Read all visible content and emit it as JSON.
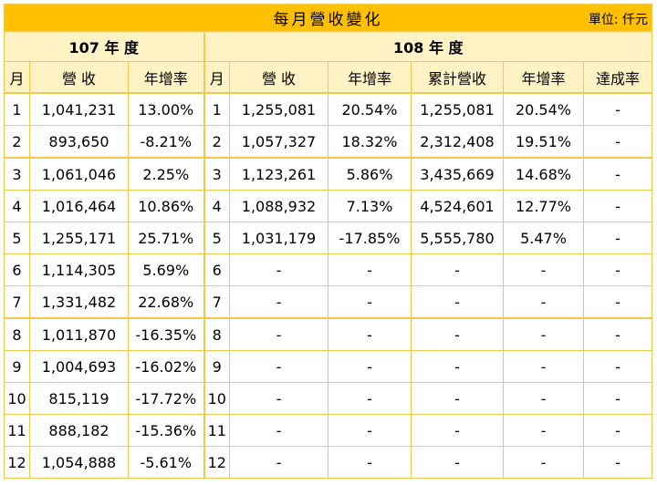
{
  "title": "每月營收變化",
  "unit": "單位: 仟元",
  "year107": {
    "label": "107 年 度",
    "headers": [
      "月",
      "營 收",
      "年增率"
    ]
  },
  "year108": {
    "label": "108 年 度",
    "headers": [
      "月",
      "營 收",
      "年增率",
      "累計營收",
      "年增率",
      "達成率"
    ]
  },
  "rows": [
    {
      "m107": "1",
      "rev107": "1,041,231",
      "yoy107": "13.00%",
      "m108": "1",
      "rev108": "1,255,081",
      "yoy108": "20.54%",
      "cum108": "1,255,081",
      "cumyoy108": "20.54%",
      "ach108": "-"
    },
    {
      "m107": "2",
      "rev107": "893,650",
      "yoy107": "-8.21%",
      "m108": "2",
      "rev108": "1,057,327",
      "yoy108": "18.32%",
      "cum108": "2,312,408",
      "cumyoy108": "19.51%",
      "ach108": "-"
    },
    {
      "m107": "3",
      "rev107": "1,061,046",
      "yoy107": "2.25%",
      "m108": "3",
      "rev108": "1,123,261",
      "yoy108": "5.86%",
      "cum108": "3,435,669",
      "cumyoy108": "14.68%",
      "ach108": "-"
    },
    {
      "m107": "4",
      "rev107": "1,016,464",
      "yoy107": "10.86%",
      "m108": "4",
      "rev108": "1,088,932",
      "yoy108": "7.13%",
      "cum108": "4,524,601",
      "cumyoy108": "12.77%",
      "ach108": "-"
    },
    {
      "m107": "5",
      "rev107": "1,255,171",
      "yoy107": "25.71%",
      "m108": "5",
      "rev108": "1,031,179",
      "yoy108": "-17.85%",
      "cum108": "5,555,780",
      "cumyoy108": "5.47%",
      "ach108": "-"
    },
    {
      "m107": "6",
      "rev107": "1,114,305",
      "yoy107": "5.69%",
      "m108": "6",
      "rev108": "-",
      "yoy108": "-",
      "cum108": "-",
      "cumyoy108": "-",
      "ach108": "-"
    },
    {
      "m107": "7",
      "rev107": "1,331,482",
      "yoy107": "22.68%",
      "m108": "7",
      "rev108": "-",
      "yoy108": "-",
      "cum108": "-",
      "cumyoy108": "-",
      "ach108": "-"
    },
    {
      "m107": "8",
      "rev107": "1,011,870",
      "yoy107": "-16.35%",
      "m108": "8",
      "rev108": "-",
      "yoy108": "-",
      "cum108": "-",
      "cumyoy108": "-",
      "ach108": "-"
    },
    {
      "m107": "9",
      "rev107": "1,004,693",
      "yoy107": "-16.02%",
      "m108": "9",
      "rev108": "-",
      "yoy108": "-",
      "cum108": "-",
      "cumyoy108": "-",
      "ach108": "-"
    },
    {
      "m107": "10",
      "rev107": "815,119",
      "yoy107": "-17.72%",
      "m108": "10",
      "rev108": "-",
      "yoy108": "-",
      "cum108": "-",
      "cumyoy108": "-",
      "ach108": "-"
    },
    {
      "m107": "11",
      "rev107": "888,182",
      "yoy107": "-15.36%",
      "m108": "11",
      "rev108": "-",
      "yoy108": "-",
      "cum108": "-",
      "cumyoy108": "-",
      "ach108": "-"
    },
    {
      "m107": "12",
      "rev107": "1,054,888",
      "yoy107": "-5.61%",
      "m108": "12",
      "rev108": "-",
      "yoy108": "-",
      "cum108": "-",
      "cumyoy108": "-",
      "ach108": "-"
    }
  ]
}
